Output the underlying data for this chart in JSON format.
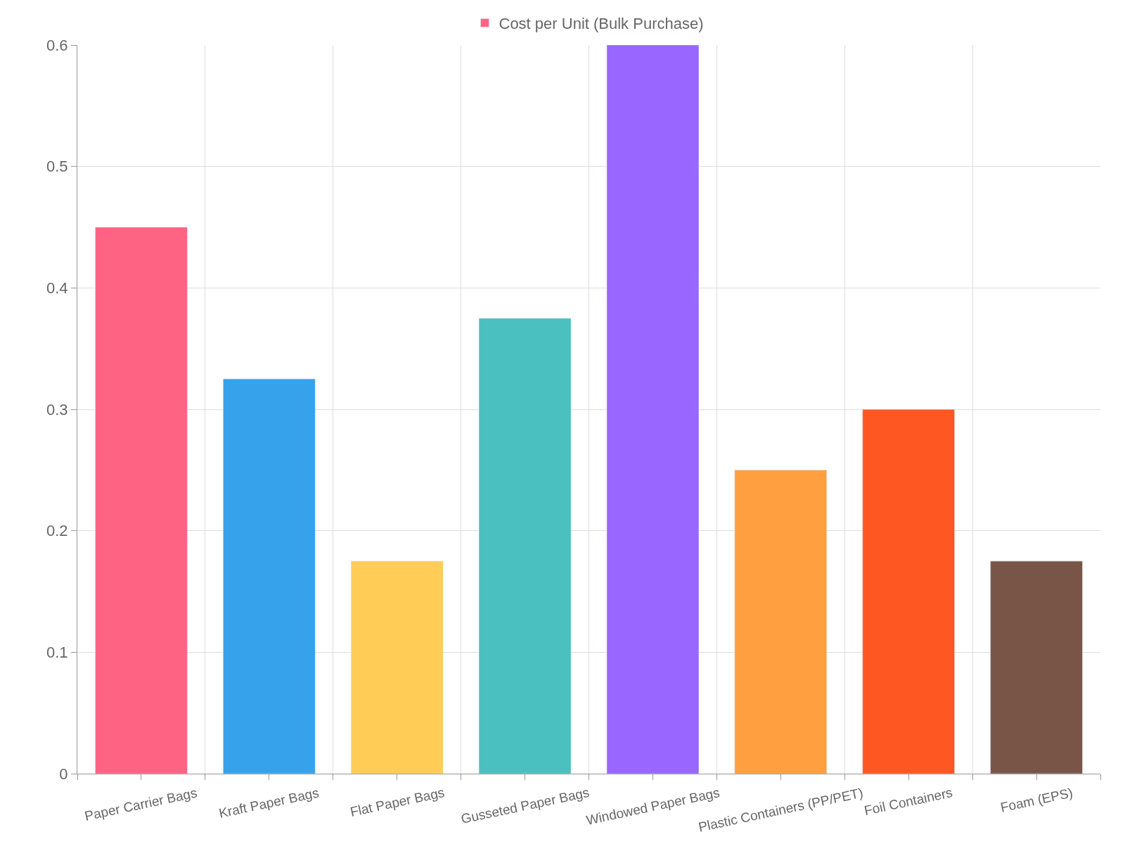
{
  "chart_data": {
    "type": "bar",
    "categories": [
      "Paper Carrier Bags",
      "Kraft Paper Bags",
      "Flat Paper Bags",
      "Gusseted Paper Bags",
      "Windowed Paper Bags",
      "Plastic Containers (PP/PET)",
      "Foil Containers",
      "Foam (EPS)"
    ],
    "series": [
      {
        "name": "Cost per Unit (Bulk Purchase)",
        "colors": [
          "#ff6384",
          "#36a2eb",
          "#ffcd56",
          "#4bc0c0",
          "#9966ff",
          "#ff9f40",
          "#ff5722",
          "#795548"
        ],
        "values": [
          0.45,
          0.325,
          0.175,
          0.375,
          0.6,
          0.25,
          0.3,
          0.175
        ]
      }
    ],
    "ylim": [
      0,
      0.6
    ],
    "yticks": [
      0,
      0.1,
      0.2,
      0.3,
      0.4,
      0.5,
      0.6
    ],
    "grid": true,
    "legend": "top"
  }
}
